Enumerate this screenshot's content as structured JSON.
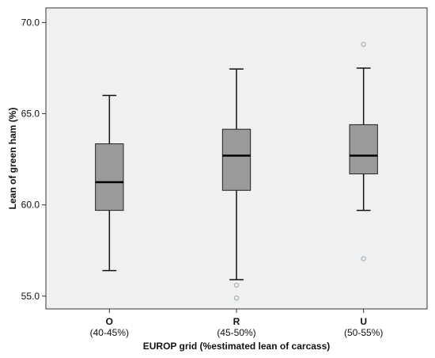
{
  "chart_data": {
    "type": "box",
    "xlabel": "EUROP grid (%estimated lean of carcass)",
    "ylabel": "Lean of green ham (%)",
    "ylim": [
      54.3,
      70.8
    ],
    "yticks": [
      55.0,
      60.0,
      65.0,
      70.0
    ],
    "ytick_labels": [
      "55.0",
      "60.0",
      "65.0",
      "70.0"
    ],
    "grid": false,
    "colors": {
      "plot_background": "#f0f0f0",
      "box_fill": "#9a9a9a",
      "outlier": "#9ab4c8"
    },
    "categories": [
      {
        "label": "O",
        "sublabel": "(40-45%)"
      },
      {
        "label": "R",
        "sublabel": "(45-50%)"
      },
      {
        "label": "U",
        "sublabel": "(50-55%)"
      }
    ],
    "boxes": [
      {
        "category": "O",
        "whisker_low": 56.4,
        "q1": 59.7,
        "median": 61.25,
        "q3": 63.35,
        "whisker_high": 66.0,
        "outliers": []
      },
      {
        "category": "R",
        "whisker_low": 55.9,
        "q1": 60.8,
        "median": 62.7,
        "q3": 64.15,
        "whisker_high": 67.45,
        "outliers": [
          55.6,
          54.9
        ]
      },
      {
        "category": "U",
        "whisker_low": 59.7,
        "q1": 61.7,
        "median": 62.7,
        "q3": 64.4,
        "whisker_high": 67.5,
        "outliers": [
          68.8,
          57.05
        ]
      }
    ]
  }
}
